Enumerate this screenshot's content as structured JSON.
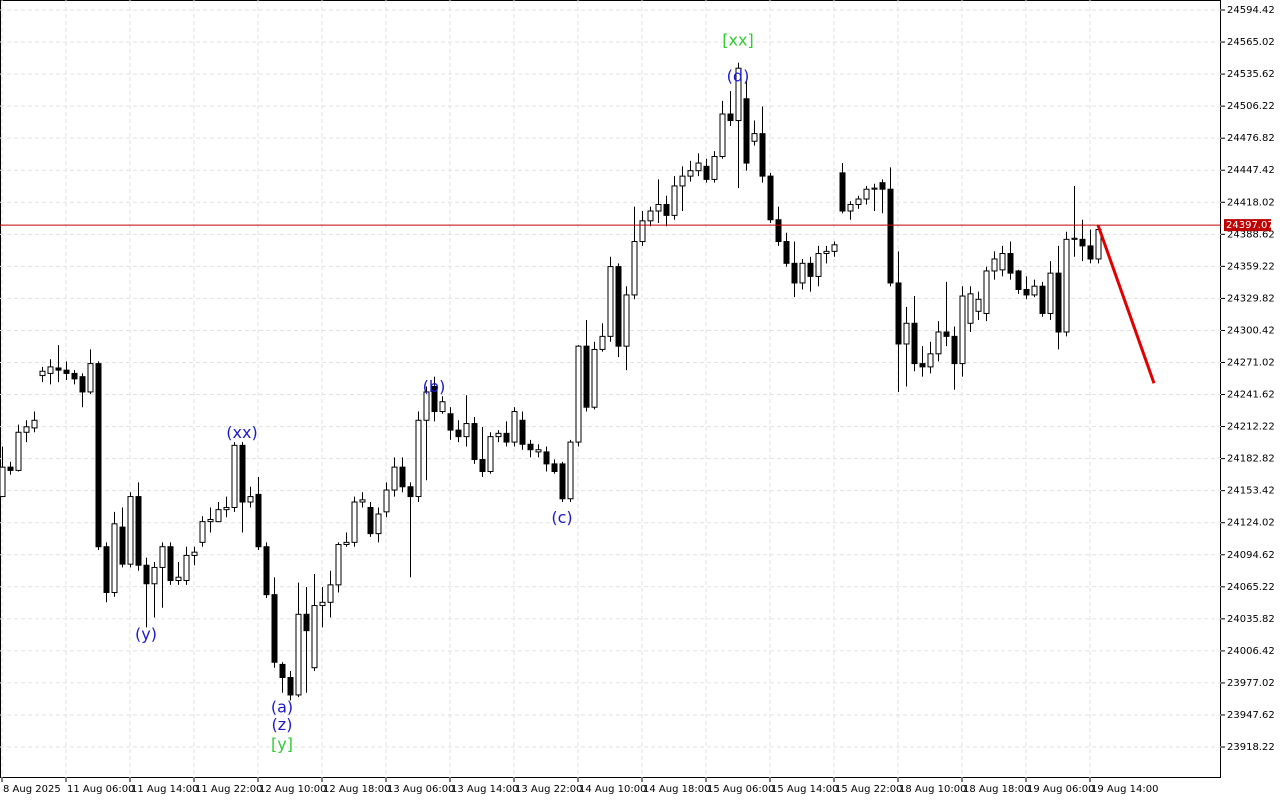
{
  "chart_data": {
    "type": "candlestick",
    "ylim": [
      23889.8,
      24603.6
    ],
    "xlim": [
      -0.25,
      152.375
    ],
    "grid": true,
    "up_color": "#ffffff",
    "down_color": "#000000",
    "outline_color": "#000000",
    "yticks": [
      23918.22,
      23947.62,
      23977.02,
      24006.42,
      24035.82,
      24065.22,
      24094.62,
      24124.02,
      24153.42,
      24182.82,
      24212.22,
      24241.62,
      24271.02,
      24300.42,
      24329.82,
      24359.22,
      24388.62,
      24418.02,
      24447.42,
      24476.82,
      24506.22,
      24535.62,
      24565.02,
      24594.42
    ],
    "xticks": [
      {
        "value": 0,
        "label": "8 Aug 2025"
      },
      {
        "value": 8,
        "label": "11 Aug 06:00"
      },
      {
        "value": 16,
        "label": "11 Aug 14:00"
      },
      {
        "value": 24,
        "label": "11 Aug 22:00"
      },
      {
        "value": 32,
        "label": "12 Aug 10:00"
      },
      {
        "value": 40,
        "label": "12 Aug 18:00"
      },
      {
        "value": 48,
        "label": "13 Aug 06:00"
      },
      {
        "value": 56,
        "label": "13 Aug 14:00"
      },
      {
        "value": 64,
        "label": "13 Aug 22:00"
      },
      {
        "value": 72,
        "label": "14 Aug 10:00"
      },
      {
        "value": 80,
        "label": "14 Aug 18:00"
      },
      {
        "value": 88,
        "label": "15 Aug 06:00"
      },
      {
        "value": 96,
        "label": "15 Aug 14:00"
      },
      {
        "value": 104,
        "label": "15 Aug 22:00"
      },
      {
        "value": 112,
        "label": "18 Aug 10:00"
      },
      {
        "value": 120,
        "label": "18 Aug 18:00"
      },
      {
        "value": 128,
        "label": "19 Aug 06:00"
      },
      {
        "value": 136,
        "label": "19 Aug 14:00"
      }
    ],
    "candles": [
      [
        24148,
        24194,
        24148,
        24175
      ],
      [
        24175,
        24180,
        24168,
        24172
      ],
      [
        24172,
        24214,
        24171,
        24207
      ],
      [
        24207,
        24218,
        24198,
        24212
      ],
      [
        24211,
        24226,
        24207,
        24218
      ],
      [
        24259,
        24267,
        24253,
        24263
      ],
      [
        24261,
        24274,
        24251,
        24267
      ],
      [
        24266,
        24287,
        24253,
        24264
      ],
      [
        24264,
        24272,
        24255,
        24261
      ],
      [
        24261,
        24264,
        24251,
        24256
      ],
      [
        24258,
        24261,
        24230,
        24244
      ],
      [
        24244,
        24283,
        24242,
        24270
      ],
      [
        24270,
        24272,
        24099,
        24102
      ],
      [
        24102,
        24106,
        24051,
        24060
      ],
      [
        24060,
        24134,
        24056,
        24123
      ],
      [
        24120,
        24138,
        24083,
        24086
      ],
      [
        24086,
        24152,
        24083,
        24148
      ],
      [
        24148,
        24161,
        24080,
        24085
      ],
      [
        24085,
        24092,
        24028,
        24068
      ],
      [
        24068,
        24088,
        24037,
        24083
      ],
      [
        24083,
        24106,
        24046,
        24102
      ],
      [
        24102,
        24106,
        24067,
        24071
      ],
      [
        24071,
        24088,
        24067,
        24074
      ],
      [
        24071,
        24102,
        24067,
        24094
      ],
      [
        24094,
        24102,
        24085,
        24097
      ],
      [
        24106,
        24130,
        24102,
        24125
      ],
      [
        24125,
        24138,
        24115,
        24127
      ],
      [
        24125,
        24143,
        24125,
        24136
      ],
      [
        24136,
        24148,
        24129,
        24138
      ],
      [
        24138,
        24198,
        24134,
        24195
      ],
      [
        24195,
        24198,
        24115,
        24143
      ],
      [
        24143,
        24157,
        24138,
        24148
      ],
      [
        24150,
        24166,
        24099,
        24102
      ],
      [
        24102,
        24106,
        24055,
        24058
      ],
      [
        24058,
        24074,
        23991,
        23996
      ],
      [
        23994,
        23996,
        23968,
        23982
      ],
      [
        23982,
        23988,
        23961,
        23966
      ],
      [
        23966,
        24069,
        23964,
        24040
      ],
      [
        24040,
        24065,
        23968,
        24025
      ],
      [
        23991,
        24077,
        23988,
        24048
      ],
      [
        24048,
        24065,
        24028,
        24051
      ],
      [
        24051,
        24080,
        24037,
        24067
      ],
      [
        24067,
        24106,
        24060,
        24104
      ],
      [
        24104,
        24115,
        24102,
        24106
      ],
      [
        24106,
        24148,
        24102,
        24143
      ],
      [
        24143,
        24152,
        24138,
        24145
      ],
      [
        24138,
        24143,
        24111,
        24114
      ],
      [
        24114,
        24138,
        24106,
        24132
      ],
      [
        24134,
        24161,
        24129,
        24154
      ],
      [
        24154,
        24184,
        24148,
        24175
      ],
      [
        24175,
        24184,
        24152,
        24157
      ],
      [
        24157,
        24161,
        24074,
        24148
      ],
      [
        24148,
        24226,
        24143,
        24218
      ],
      [
        24218,
        24249,
        24163,
        24244
      ],
      [
        24249,
        24258,
        24217,
        24226
      ],
      [
        24226,
        24240,
        24224,
        24235
      ],
      [
        24224,
        24230,
        24200,
        24209
      ],
      [
        24209,
        24218,
        24198,
        24203
      ],
      [
        24203,
        24241,
        24194,
        24215
      ],
      [
        24215,
        24221,
        24178,
        24182
      ],
      [
        24182,
        24212,
        24166,
        24171
      ],
      [
        24171,
        24207,
        24169,
        24203
      ],
      [
        24203,
        24209,
        24198,
        24206
      ],
      [
        24206,
        24217,
        24194,
        24198
      ],
      [
        24198,
        24230,
        24194,
        24226
      ],
      [
        24218,
        24226,
        24191,
        24196
      ],
      [
        24196,
        24200,
        24184,
        24191
      ],
      [
        24189,
        24196,
        24184,
        24191
      ],
      [
        24189,
        24194,
        24171,
        24178
      ],
      [
        24178,
        24182,
        24169,
        24171
      ],
      [
        24178,
        24180,
        24143,
        24146
      ],
      [
        24146,
        24200,
        24143,
        24198
      ],
      [
        24198,
        24287,
        24194,
        24286
      ],
      [
        24286,
        24310,
        24226,
        24230
      ],
      [
        24230,
        24290,
        24228,
        24283
      ],
      [
        24283,
        24307,
        24281,
        24295
      ],
      [
        24295,
        24368,
        24290,
        24359
      ],
      [
        24359,
        24362,
        24276,
        24286
      ],
      [
        24286,
        24341,
        24264,
        24333
      ],
      [
        24333,
        24414,
        24329,
        24382
      ],
      [
        24382,
        24410,
        24378,
        24401
      ],
      [
        24401,
        24414,
        24396,
        24410
      ],
      [
        24410,
        24439,
        24399,
        24416
      ],
      [
        24416,
        24424,
        24396,
        24406
      ],
      [
        24406,
        24442,
        24402,
        24433
      ],
      [
        24433,
        24451,
        24410,
        24442
      ],
      [
        24442,
        24456,
        24437,
        24447
      ],
      [
        24447,
        24463,
        24442,
        24454
      ],
      [
        24451,
        24458,
        24436,
        24439
      ],
      [
        24439,
        24465,
        24436,
        24460
      ],
      [
        24460,
        24511,
        24458,
        24499
      ],
      [
        24499,
        24520,
        24488,
        24493
      ],
      [
        24493,
        24546,
        24431,
        24541
      ],
      [
        24513,
        24529,
        24447,
        24454
      ],
      [
        24474,
        24493,
        24470,
        24481
      ],
      [
        24481,
        24506,
        24436,
        24442
      ],
      [
        24442,
        24445,
        24399,
        24402
      ],
      [
        24402,
        24414,
        24378,
        24382
      ],
      [
        24382,
        24390,
        24359,
        24362
      ],
      [
        24362,
        24382,
        24331,
        24344
      ],
      [
        24344,
        24366,
        24338,
        24362
      ],
      [
        24362,
        24368,
        24336,
        24350
      ],
      [
        24350,
        24378,
        24341,
        24371
      ],
      [
        24371,
        24378,
        24362,
        24373
      ],
      [
        24373,
        24382,
        24368,
        24379
      ],
      [
        24445,
        24454,
        24408,
        24410
      ],
      [
        24410,
        24419,
        24402,
        24416
      ],
      [
        24416,
        24424,
        24412,
        24421
      ],
      [
        24421,
        24433,
        24416,
        24430
      ],
      [
        24430,
        24435,
        24410,
        24431
      ],
      [
        24436,
        24439,
        24408,
        24430
      ],
      [
        24430,
        24450,
        24341,
        24344
      ],
      [
        24344,
        24373,
        24244,
        24288
      ],
      [
        24288,
        24322,
        24249,
        24307
      ],
      [
        24307,
        24332,
        24263,
        24270
      ],
      [
        24270,
        24286,
        24258,
        24267
      ],
      [
        24267,
        24290,
        24261,
        24279
      ],
      [
        24279,
        24309,
        24272,
        24299
      ],
      [
        24299,
        24345,
        24286,
        24295
      ],
      [
        24295,
        24304,
        24246,
        24270
      ],
      [
        24270,
        24341,
        24258,
        24332
      ],
      [
        24307,
        24341,
        24299,
        24334
      ],
      [
        24318,
        24336,
        24310,
        24329
      ],
      [
        24316,
        24359,
        24309,
        24355
      ],
      [
        24355,
        24373,
        24347,
        24366
      ],
      [
        24356,
        24378,
        24350,
        24371
      ],
      [
        24371,
        24382,
        24347,
        24353
      ],
      [
        24355,
        24356,
        24334,
        24338
      ],
      [
        24338,
        24350,
        24329,
        24333
      ],
      [
        24333,
        24347,
        24331,
        24341
      ],
      [
        24341,
        24345,
        24313,
        24316
      ],
      [
        24316,
        24364,
        24310,
        24353
      ],
      [
        24353,
        24378,
        24283,
        24299
      ],
      [
        24299,
        24391,
        24295,
        24384
      ],
      [
        24384,
        24433,
        24368,
        24385
      ],
      [
        24384,
        24402,
        24364,
        24378
      ],
      [
        24378,
        24393,
        24362,
        24366
      ],
      [
        24366,
        24397,
        24362,
        24393
      ]
    ],
    "price_line": {
      "value": 24397.07,
      "label": "24397.07",
      "color": "#c00000"
    },
    "forecast": {
      "x": [
        137,
        144
      ],
      "y": [
        24397.07,
        24252
      ],
      "color": "#e00000"
    },
    "annotations": [
      {
        "text": "[xx]",
        "x": 92,
        "y": 24566,
        "color": "#33cc33"
      },
      {
        "text": "(d)",
        "x": 92,
        "y": 24533,
        "color": "#1a1acc"
      },
      {
        "text": "(b)",
        "x": 54,
        "y": 24248,
        "color": "#1a1acc"
      },
      {
        "text": "(c)",
        "x": 70,
        "y": 24128,
        "color": "#1a1acc"
      },
      {
        "text": "(xx)",
        "x": 30,
        "y": 24206,
        "color": "#1a1acc"
      },
      {
        "text": "(y)",
        "x": 18,
        "y": 24021,
        "color": "#1a1acc"
      },
      {
        "text": "(a)",
        "x": 35,
        "y": 23954,
        "color": "#1a1acc"
      },
      {
        "text": "(z)",
        "x": 35,
        "y": 23938,
        "color": "#1a1acc"
      },
      {
        "text": "[y]",
        "x": 35,
        "y": 23920,
        "color": "#33cc33"
      }
    ]
  }
}
